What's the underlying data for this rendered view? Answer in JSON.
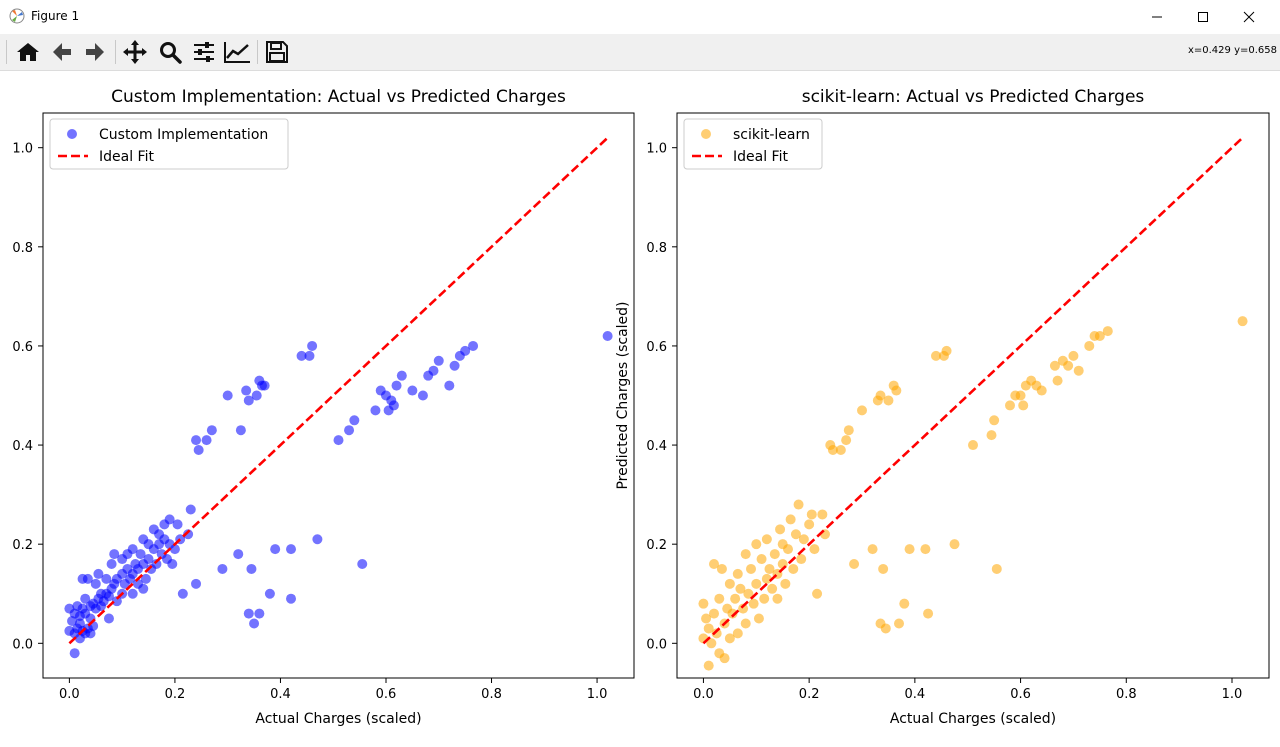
{
  "window": {
    "title": "Figure 1"
  },
  "toolbar": {
    "buttons": [
      "home-icon",
      "back-arrow-icon",
      "forward-arrow-icon",
      "pan-icon",
      "zoom-icon",
      "configure-subplots-icon",
      "edit-axis-icon",
      "save-icon"
    ],
    "coords": "x=0.429 y=0.658"
  },
  "chart_data": [
    {
      "type": "scatter",
      "title": "Custom Implementation: Actual vs Predicted Charges",
      "xlabel": "Actual Charges (scaled)",
      "ylabel": "",
      "xlim": [
        -0.05,
        1.07
      ],
      "ylim": [
        -0.07,
        1.07
      ],
      "xticks": [
        "0.0",
        "0.2",
        "0.4",
        "0.6",
        "0.8",
        "1.0"
      ],
      "yticks": [
        "0.0",
        "0.2",
        "0.4",
        "0.6",
        "0.8",
        "1.0"
      ],
      "legend_position": "top-left",
      "legend": [
        "Custom Implementation",
        "Ideal Fit"
      ],
      "colors": {
        "points": "#0000ff",
        "ideal": "#ff0000"
      },
      "ideal_fit": [
        [
          0.0,
          0.0
        ],
        [
          1.02,
          1.02
        ]
      ],
      "points": [
        [
          0.0,
          0.025
        ],
        [
          0.0,
          0.07
        ],
        [
          0.005,
          0.045
        ],
        [
          0.01,
          0.02
        ],
        [
          0.01,
          0.06
        ],
        [
          0.01,
          -0.02
        ],
        [
          0.015,
          0.03
        ],
        [
          0.015,
          0.075
        ],
        [
          0.02,
          0.01
        ],
        [
          0.02,
          0.04
        ],
        [
          0.02,
          0.055
        ],
        [
          0.025,
          0.025
        ],
        [
          0.025,
          0.07
        ],
        [
          0.025,
          0.13
        ],
        [
          0.03,
          0.02
        ],
        [
          0.03,
          0.06
        ],
        [
          0.03,
          0.09
        ],
        [
          0.035,
          0.03
        ],
        [
          0.035,
          0.13
        ],
        [
          0.04,
          0.02
        ],
        [
          0.04,
          0.05
        ],
        [
          0.04,
          0.075
        ],
        [
          0.045,
          0.035
        ],
        [
          0.045,
          0.08
        ],
        [
          0.05,
          0.07
        ],
        [
          0.05,
          0.12
        ],
        [
          0.055,
          0.09
        ],
        [
          0.055,
          0.14
        ],
        [
          0.06,
          0.075
        ],
        [
          0.06,
          0.1
        ],
        [
          0.065,
          0.085
        ],
        [
          0.07,
          0.1
        ],
        [
          0.07,
          0.13
        ],
        [
          0.075,
          0.05
        ],
        [
          0.075,
          0.095
        ],
        [
          0.08,
          0.11
        ],
        [
          0.08,
          0.16
        ],
        [
          0.085,
          0.12
        ],
        [
          0.085,
          0.18
        ],
        [
          0.09,
          0.085
        ],
        [
          0.09,
          0.13
        ],
        [
          0.1,
          0.1
        ],
        [
          0.1,
          0.14
        ],
        [
          0.1,
          0.17
        ],
        [
          0.105,
          0.12
        ],
        [
          0.11,
          0.15
        ],
        [
          0.11,
          0.18
        ],
        [
          0.115,
          0.13
        ],
        [
          0.12,
          0.1
        ],
        [
          0.12,
          0.14
        ],
        [
          0.12,
          0.19
        ],
        [
          0.125,
          0.16
        ],
        [
          0.13,
          0.12
        ],
        [
          0.13,
          0.15
        ],
        [
          0.135,
          0.18
        ],
        [
          0.14,
          0.11
        ],
        [
          0.14,
          0.16
        ],
        [
          0.14,
          0.21
        ],
        [
          0.145,
          0.13
        ],
        [
          0.15,
          0.17
        ],
        [
          0.15,
          0.2
        ],
        [
          0.155,
          0.15
        ],
        [
          0.16,
          0.19
        ],
        [
          0.16,
          0.23
        ],
        [
          0.165,
          0.16
        ],
        [
          0.17,
          0.2
        ],
        [
          0.17,
          0.22
        ],
        [
          0.175,
          0.18
        ],
        [
          0.18,
          0.21
        ],
        [
          0.18,
          0.24
        ],
        [
          0.185,
          0.17
        ],
        [
          0.19,
          0.2
        ],
        [
          0.19,
          0.25
        ],
        [
          0.195,
          0.16
        ],
        [
          0.2,
          0.19
        ],
        [
          0.205,
          0.24
        ],
        [
          0.21,
          0.21
        ],
        [
          0.215,
          0.1
        ],
        [
          0.225,
          0.22
        ],
        [
          0.23,
          0.27
        ],
        [
          0.24,
          0.12
        ],
        [
          0.24,
          0.41
        ],
        [
          0.245,
          0.39
        ],
        [
          0.26,
          0.41
        ],
        [
          0.27,
          0.43
        ],
        [
          0.29,
          0.15
        ],
        [
          0.3,
          0.5
        ],
        [
          0.32,
          0.18
        ],
        [
          0.325,
          0.43
        ],
        [
          0.335,
          0.51
        ],
        [
          0.34,
          0.49
        ],
        [
          0.34,
          0.06
        ],
        [
          0.345,
          0.15
        ],
        [
          0.35,
          0.04
        ],
        [
          0.355,
          0.5
        ],
        [
          0.36,
          0.53
        ],
        [
          0.36,
          0.06
        ],
        [
          0.365,
          0.52
        ],
        [
          0.37,
          0.52
        ],
        [
          0.38,
          0.1
        ],
        [
          0.39,
          0.19
        ],
        [
          0.42,
          0.19
        ],
        [
          0.42,
          0.09
        ],
        [
          0.44,
          0.58
        ],
        [
          0.455,
          0.58
        ],
        [
          0.46,
          0.6
        ],
        [
          0.47,
          0.21
        ],
        [
          0.51,
          0.41
        ],
        [
          0.53,
          0.43
        ],
        [
          0.54,
          0.45
        ],
        [
          0.555,
          0.16
        ],
        [
          0.58,
          0.47
        ],
        [
          0.59,
          0.51
        ],
        [
          0.6,
          0.5
        ],
        [
          0.605,
          0.47
        ],
        [
          0.61,
          0.49
        ],
        [
          0.615,
          0.48
        ],
        [
          0.62,
          0.52
        ],
        [
          0.63,
          0.54
        ],
        [
          0.65,
          0.51
        ],
        [
          0.67,
          0.5
        ],
        [
          0.68,
          0.54
        ],
        [
          0.69,
          0.55
        ],
        [
          0.7,
          0.57
        ],
        [
          0.72,
          0.52
        ],
        [
          0.73,
          0.56
        ],
        [
          0.74,
          0.58
        ],
        [
          0.75,
          0.59
        ],
        [
          0.765,
          0.6
        ],
        [
          1.02,
          0.62
        ]
      ]
    },
    {
      "type": "scatter",
      "title": "scikit-learn: Actual vs Predicted Charges",
      "xlabel": "Actual Charges (scaled)",
      "ylabel": "Predicted Charges (scaled)",
      "xlim": [
        -0.05,
        1.07
      ],
      "ylim": [
        -0.07,
        1.07
      ],
      "xticks": [
        "0.0",
        "0.2",
        "0.4",
        "0.6",
        "0.8",
        "1.0"
      ],
      "yticks": [
        "0.0",
        "0.2",
        "0.4",
        "0.6",
        "0.8",
        "1.0"
      ],
      "legend_position": "top-left",
      "legend": [
        "scikit-learn",
        "Ideal Fit"
      ],
      "colors": {
        "points": "#ffa500",
        "ideal": "#ff0000"
      },
      "ideal_fit": [
        [
          0.0,
          0.0
        ],
        [
          1.02,
          1.02
        ]
      ],
      "points": [
        [
          0.0,
          0.01
        ],
        [
          0.0,
          0.08
        ],
        [
          0.005,
          0.05
        ],
        [
          0.01,
          -0.045
        ],
        [
          0.01,
          0.03
        ],
        [
          0.015,
          0.0
        ],
        [
          0.02,
          0.06
        ],
        [
          0.02,
          0.16
        ],
        [
          0.025,
          0.02
        ],
        [
          0.03,
          -0.02
        ],
        [
          0.03,
          0.09
        ],
        [
          0.035,
          0.15
        ],
        [
          0.04,
          0.04
        ],
        [
          0.04,
          -0.03
        ],
        [
          0.045,
          0.07
        ],
        [
          0.05,
          0.01
        ],
        [
          0.05,
          0.12
        ],
        [
          0.055,
          0.06
        ],
        [
          0.06,
          0.09
        ],
        [
          0.065,
          0.02
        ],
        [
          0.065,
          0.14
        ],
        [
          0.07,
          0.11
        ],
        [
          0.075,
          0.07
        ],
        [
          0.08,
          0.18
        ],
        [
          0.08,
          0.04
        ],
        [
          0.085,
          0.1
        ],
        [
          0.09,
          0.15
        ],
        [
          0.095,
          0.08
        ],
        [
          0.1,
          0.2
        ],
        [
          0.1,
          0.12
        ],
        [
          0.105,
          0.05
        ],
        [
          0.11,
          0.17
        ],
        [
          0.115,
          0.09
        ],
        [
          0.12,
          0.13
        ],
        [
          0.12,
          0.21
        ],
        [
          0.125,
          0.15
        ],
        [
          0.13,
          0.11
        ],
        [
          0.135,
          0.18
        ],
        [
          0.14,
          0.14
        ],
        [
          0.14,
          0.09
        ],
        [
          0.145,
          0.23
        ],
        [
          0.15,
          0.16
        ],
        [
          0.15,
          0.2
        ],
        [
          0.155,
          0.12
        ],
        [
          0.16,
          0.19
        ],
        [
          0.165,
          0.25
        ],
        [
          0.17,
          0.15
        ],
        [
          0.175,
          0.22
        ],
        [
          0.18,
          0.28
        ],
        [
          0.185,
          0.17
        ],
        [
          0.19,
          0.21
        ],
        [
          0.2,
          0.24
        ],
        [
          0.205,
          0.26
        ],
        [
          0.21,
          0.19
        ],
        [
          0.215,
          0.1
        ],
        [
          0.225,
          0.26
        ],
        [
          0.23,
          0.22
        ],
        [
          0.24,
          0.4
        ],
        [
          0.245,
          0.39
        ],
        [
          0.26,
          0.39
        ],
        [
          0.27,
          0.41
        ],
        [
          0.275,
          0.43
        ],
        [
          0.285,
          0.16
        ],
        [
          0.3,
          0.47
        ],
        [
          0.32,
          0.19
        ],
        [
          0.33,
          0.49
        ],
        [
          0.335,
          0.5
        ],
        [
          0.34,
          0.15
        ],
        [
          0.335,
          0.04
        ],
        [
          0.345,
          0.03
        ],
        [
          0.35,
          0.49
        ],
        [
          0.36,
          0.52
        ],
        [
          0.365,
          0.51
        ],
        [
          0.37,
          0.04
        ],
        [
          0.38,
          0.08
        ],
        [
          0.39,
          0.19
        ],
        [
          0.42,
          0.19
        ],
        [
          0.425,
          0.06
        ],
        [
          0.44,
          0.58
        ],
        [
          0.455,
          0.58
        ],
        [
          0.46,
          0.59
        ],
        [
          0.475,
          0.2
        ],
        [
          0.51,
          0.4
        ],
        [
          0.545,
          0.42
        ],
        [
          0.55,
          0.45
        ],
        [
          0.555,
          0.15
        ],
        [
          0.58,
          0.48
        ],
        [
          0.59,
          0.5
        ],
        [
          0.6,
          0.5
        ],
        [
          0.605,
          0.48
        ],
        [
          0.61,
          0.52
        ],
        [
          0.62,
          0.53
        ],
        [
          0.63,
          0.52
        ],
        [
          0.64,
          0.51
        ],
        [
          0.665,
          0.56
        ],
        [
          0.67,
          0.53
        ],
        [
          0.68,
          0.57
        ],
        [
          0.69,
          0.56
        ],
        [
          0.7,
          0.58
        ],
        [
          0.71,
          0.55
        ],
        [
          0.73,
          0.6
        ],
        [
          0.74,
          0.62
        ],
        [
          0.75,
          0.62
        ],
        [
          0.765,
          0.63
        ],
        [
          1.02,
          0.65
        ]
      ]
    }
  ]
}
